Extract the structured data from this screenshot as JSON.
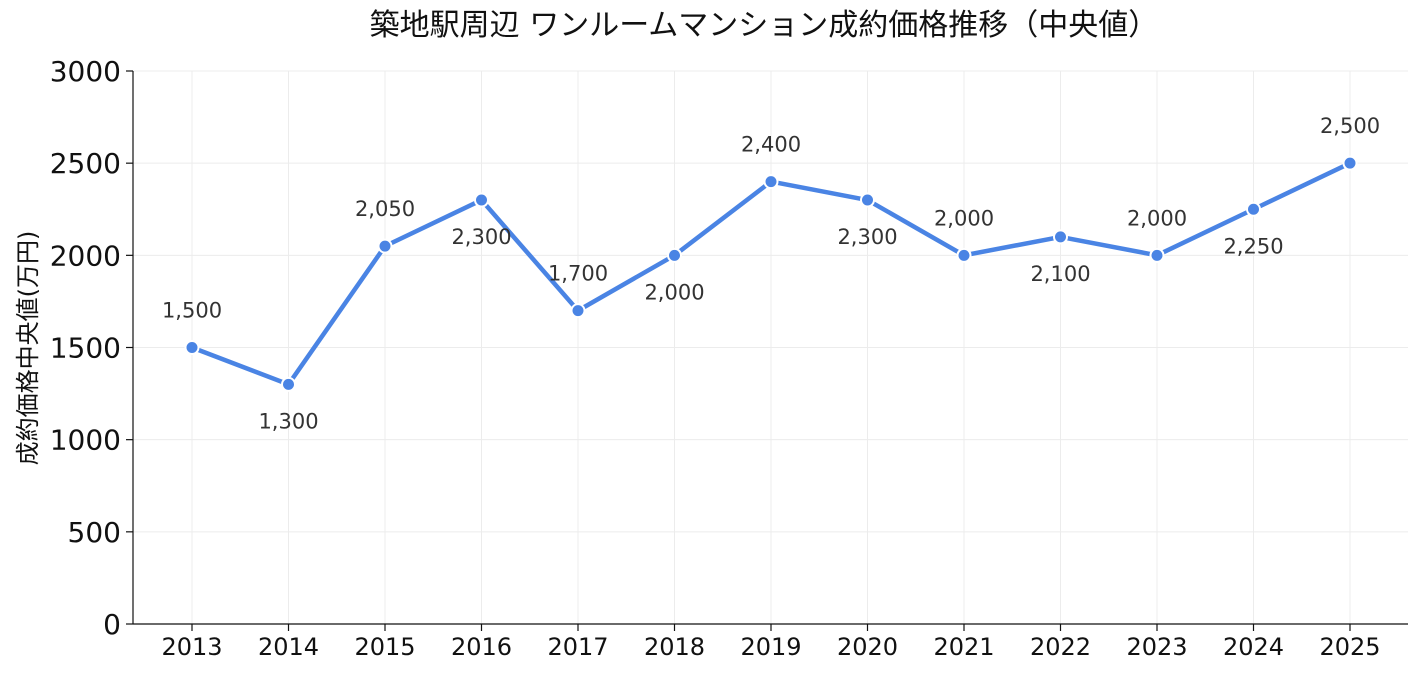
{
  "chart_data": {
    "type": "line",
    "title": "築地駅周辺 ワンルームマンション成約価格推移（中央値）",
    "xlabel": "",
    "ylabel": "成約価格中央値(万円)",
    "categories": [
      "2013",
      "2014",
      "2015",
      "2016",
      "2017",
      "2018",
      "2019",
      "2020",
      "2021",
      "2022",
      "2023",
      "2024",
      "2025"
    ],
    "series": [
      {
        "values": [
          1500,
          1300,
          2050,
          2300,
          1700,
          2000,
          2400,
          2300,
          2000,
          2100,
          2000,
          2250,
          2500
        ],
        "data_labels": [
          "1,500",
          "1,300",
          "2,050",
          "2,300",
          "1,700",
          "2,000",
          "2,400",
          "2,300",
          "2,000",
          "2,100",
          "2,000",
          "2,250",
          "2,500"
        ],
        "color": "#4a84e4"
      }
    ],
    "ylim": [
      0,
      3000
    ],
    "yticks": [
      0,
      500,
      1000,
      1500,
      2000,
      2500,
      3000
    ],
    "grid": true,
    "legend": "none"
  }
}
